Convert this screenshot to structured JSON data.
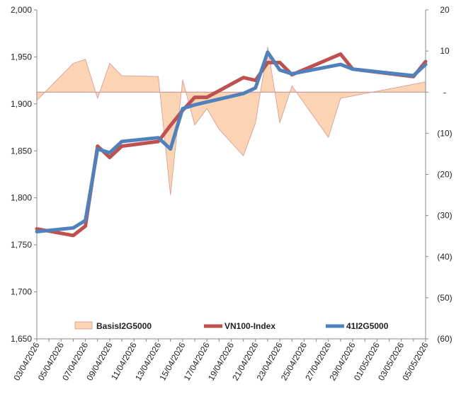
{
  "chart_data": {
    "type": "line",
    "dates": [
      "03/04/2026",
      "04/04/2026",
      "05/04/2026",
      "06/04/2026",
      "07/04/2026",
      "08/04/2026",
      "09/04/2026",
      "10/04/2026",
      "11/04/2026",
      "12/04/2026",
      "13/04/2026",
      "14/04/2026",
      "15/04/2026",
      "16/04/2026",
      "17/04/2026",
      "18/04/2026",
      "19/04/2026",
      "20/04/2026",
      "21/04/2026",
      "22/04/2026",
      "23/04/2026",
      "24/04/2026",
      "25/04/2026",
      "26/04/2026",
      "27/04/2026",
      "28/04/2026",
      "29/04/2026",
      "30/04/2026",
      "01/05/2026",
      "02/05/2026",
      "03/05/2026",
      "04/05/2026",
      "05/05/2026"
    ],
    "x_tick_labels": [
      "03/04/2026",
      "05/04/2026",
      "07/04/2026",
      "09/04/2026",
      "11/04/2026",
      "13/04/2026",
      "15/04/2026",
      "17/04/2026",
      "19/04/2026",
      "21/04/2026",
      "23/04/2026",
      "25/04/2026",
      "27/04/2026",
      "29/04/2026",
      "01/05/2026",
      "03/05/2026",
      "05/05/2026"
    ],
    "y_left": {
      "ylim": [
        1650,
        2000
      ],
      "ticks": [
        1650,
        1700,
        1750,
        1800,
        1850,
        1900,
        1950,
        2000
      ],
      "tick_labels": [
        "1,650",
        "1,700",
        "1,750",
        "1,800",
        "1,850",
        "1,900",
        "1,950",
        "2,000"
      ]
    },
    "y_right": {
      "ylim": [
        -60,
        20
      ],
      "ticks": [
        -60,
        -50,
        -40,
        -30,
        -20,
        -10,
        0,
        10,
        20
      ],
      "tick_labels": [
        "(60)",
        "(50)",
        "(40)",
        "(30)",
        "(20)",
        "(10)",
        "-",
        "10",
        "20"
      ]
    },
    "grid": false,
    "legend_position": "bottom-inside",
    "series": [
      {
        "name": "BasisI2G5000",
        "type": "area",
        "axis": "right",
        "color": "#fbd4b4",
        "edge_color": "#d99694",
        "x": [
          "03/04/2026",
          "06/04/2026",
          "07/04/2026",
          "08/04/2026",
          "09/04/2026",
          "10/04/2026",
          "13/04/2026",
          "14/04/2026",
          "15/04/2026",
          "16/04/2026",
          "17/04/2026",
          "18/04/2026",
          "20/04/2026",
          "21/04/2026",
          "22/04/2026",
          "23/04/2026",
          "24/04/2026",
          "27/04/2026",
          "28/04/2026",
          "05/05/2026"
        ],
        "values": [
          -2,
          7,
          8,
          -1.5,
          7,
          4,
          3.8,
          -25,
          3,
          -8,
          -4,
          -9,
          -15.5,
          -7.5,
          11,
          -7.5,
          1.5,
          -11,
          -1.5,
          2.5
        ]
      },
      {
        "name": "VN100-Index",
        "type": "line",
        "axis": "left",
        "color": "#c0504d",
        "x": [
          "03/04/2026",
          "06/04/2026",
          "07/04/2026",
          "08/04/2026",
          "09/04/2026",
          "10/04/2026",
          "13/04/2026",
          "14/04/2026",
          "15/04/2026",
          "16/04/2026",
          "17/04/2026",
          "18/04/2026",
          "19/04/2026",
          "20/04/2026",
          "21/04/2026",
          "22/04/2026",
          "23/04/2026",
          "24/04/2026",
          "28/04/2026",
          "29/04/2026",
          "04/05/2026",
          "05/05/2026"
        ],
        "values": [
          1767,
          1760,
          1770,
          1855,
          1843,
          1855,
          1860,
          1877,
          1893,
          1907,
          1907,
          1914,
          1921,
          1928,
          1925,
          1944,
          1944,
          1931,
          1953,
          1937,
          1929,
          1945
        ]
      },
      {
        "name": "41I2G5000",
        "type": "line",
        "axis": "left",
        "color": "#4f81bd",
        "x": [
          "03/04/2026",
          "06/04/2026",
          "07/04/2026",
          "08/04/2026",
          "09/04/2026",
          "10/04/2026",
          "13/04/2026",
          "14/04/2026",
          "15/04/2026",
          "16/04/2026",
          "20/04/2026",
          "21/04/2026",
          "22/04/2026",
          "23/04/2026",
          "24/04/2026",
          "28/04/2026",
          "29/04/2026",
          "04/05/2026",
          "05/05/2026"
        ],
        "values": [
          1764,
          1768,
          1776,
          1852,
          1848,
          1860,
          1864,
          1852,
          1895,
          1899,
          1911,
          1917,
          1955,
          1936,
          1932,
          1942,
          1937,
          1930,
          1942
        ]
      }
    ]
  }
}
